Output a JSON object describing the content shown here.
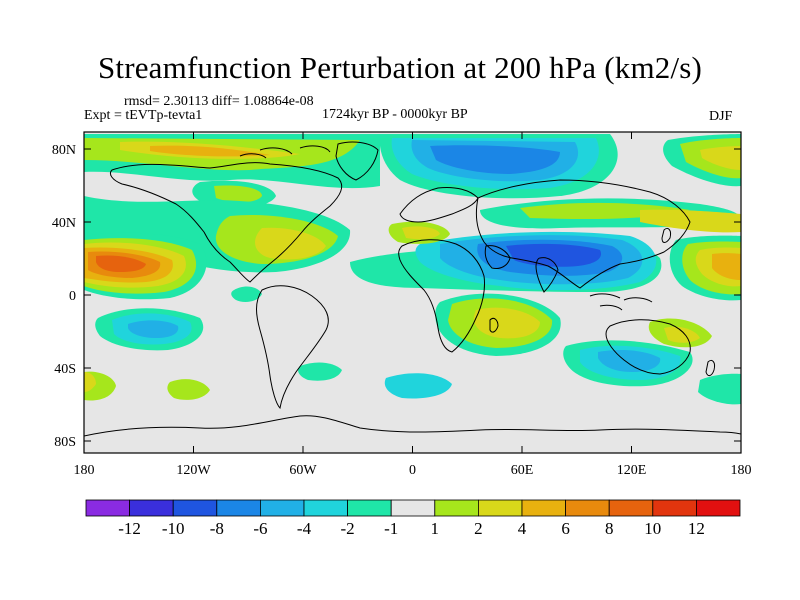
{
  "title": "Streamfunction Perturbation at 200 hPa (km2/s)",
  "stats": {
    "rmsd_label": "rmsd= 2.30113 diff= 1.08864e-08"
  },
  "experiment": "Expt = tEVTp-tevta1",
  "period": "1724kyr BP - 0000kyr BP",
  "season": "DJF",
  "axes": {
    "lat_labels": [
      "80N",
      "40N",
      "0",
      "40S",
      "80S"
    ],
    "lon_labels": [
      "180",
      "120W",
      "60W",
      "0",
      "60E",
      "120E",
      "180"
    ]
  },
  "colorbar": {
    "labels": [
      "-12",
      "-10",
      "-8",
      "-6",
      "-4",
      "-2",
      "-1",
      "1",
      "2",
      "4",
      "6",
      "8",
      "10",
      "12"
    ],
    "colors": [
      "#8a2be2",
      "#3a2fdc",
      "#1f55e0",
      "#1b86e6",
      "#21b0e6",
      "#20d4dc",
      "#1fe6a8",
      "#e6e6e6",
      "#a6e61c",
      "#d9d81a",
      "#e8b10f",
      "#e88a0d",
      "#e6630e",
      "#e2350e",
      "#e21010"
    ]
  }
}
